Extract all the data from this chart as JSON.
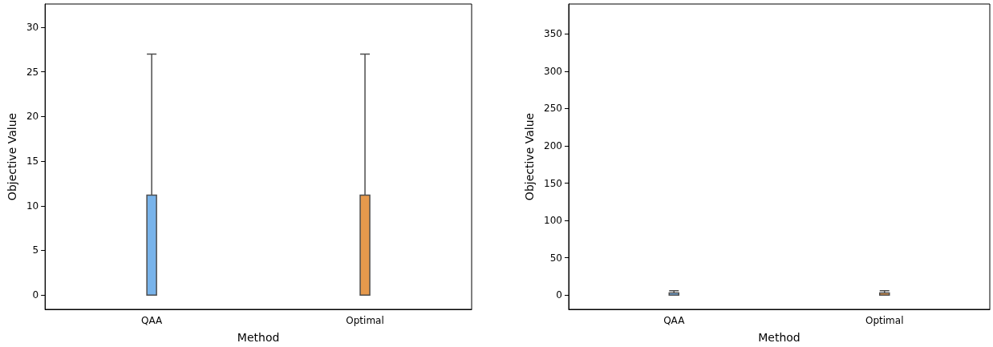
{
  "chart_data": [
    {
      "type": "box",
      "xlabel": "Method",
      "ylabel": "Objective Value",
      "categories": [
        "QAA",
        "Optimal"
      ],
      "colors": [
        "#78b3ea",
        "#e6994c"
      ],
      "boxes": [
        {
          "low": 0,
          "q1": 0,
          "median": 0,
          "q3": 11.2,
          "high": 27
        },
        {
          "low": 0,
          "q1": 0,
          "median": 0,
          "q3": 11.2,
          "high": 27
        }
      ],
      "ylim": [
        -1.6,
        32.6
      ],
      "yticks": [
        0,
        5,
        10,
        15,
        20,
        25,
        30
      ],
      "grid": false
    },
    {
      "type": "box",
      "xlabel": "Method",
      "ylabel": "Objective Value",
      "categories": [
        "QAA",
        "Optimal"
      ],
      "colors": [
        "#78b3ea",
        "#e6994c"
      ],
      "boxes": [
        {
          "low": 0,
          "q1": 0,
          "median": 0,
          "q3": 3,
          "high": 6
        },
        {
          "low": 0,
          "q1": 0,
          "median": 0,
          "q3": 3,
          "high": 6
        }
      ],
      "ylim": [
        -19,
        390
      ],
      "yticks": [
        0,
        50,
        100,
        150,
        200,
        250,
        300,
        350
      ],
      "grid": false
    }
  ]
}
